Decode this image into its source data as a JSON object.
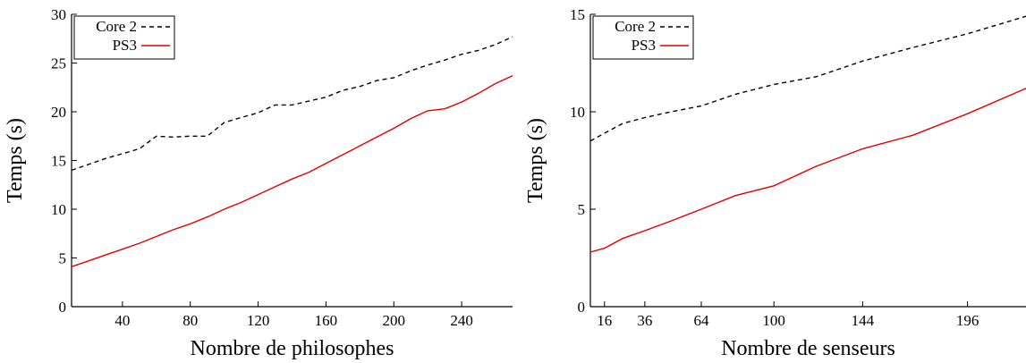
{
  "chart_data": [
    {
      "type": "line",
      "xlabel": "Nombre de philosophes",
      "ylabel": "Temps (s)",
      "xlim": [
        10,
        270
      ],
      "ylim": [
        0,
        30
      ],
      "xticks": [
        40,
        80,
        120,
        160,
        200,
        240
      ],
      "yticks": [
        0,
        5,
        10,
        15,
        20,
        25,
        30
      ],
      "legend_position": "top-left",
      "series": [
        {
          "name": "Core 2",
          "style": "dashed",
          "color": "#000000",
          "x": [
            10,
            20,
            30,
            40,
            50,
            60,
            70,
            80,
            90,
            100,
            110,
            120,
            130,
            140,
            150,
            160,
            170,
            180,
            190,
            200,
            210,
            220,
            230,
            240,
            250,
            260,
            270
          ],
          "y": [
            14.0,
            14.6,
            15.2,
            15.7,
            16.2,
            17.5,
            17.4,
            17.5,
            17.5,
            18.9,
            19.4,
            19.9,
            20.7,
            20.7,
            21.1,
            21.5,
            22.2,
            22.6,
            23.2,
            23.5,
            24.2,
            24.8,
            25.3,
            25.9,
            26.3,
            26.9,
            27.7
          ]
        },
        {
          "name": "PS3",
          "style": "solid",
          "color": "#e00000",
          "x": [
            10,
            20,
            30,
            40,
            50,
            60,
            70,
            80,
            90,
            100,
            110,
            120,
            130,
            140,
            150,
            160,
            170,
            180,
            190,
            200,
            210,
            220,
            230,
            240,
            250,
            260,
            270
          ],
          "y": [
            4.1,
            4.7,
            5.3,
            5.9,
            6.5,
            7.2,
            7.9,
            8.5,
            9.2,
            10.0,
            10.7,
            11.5,
            12.3,
            13.1,
            13.8,
            14.7,
            15.6,
            16.5,
            17.4,
            18.3,
            19.3,
            20.1,
            20.3,
            21.0,
            21.9,
            22.9,
            23.7
          ]
        }
      ]
    },
    {
      "type": "line",
      "xlabel": "Nombre de senseurs",
      "ylabel": "Temps (s)",
      "xlim": [
        9,
        225
      ],
      "ylim": [
        0,
        15
      ],
      "xticks": [
        16,
        36,
        64,
        100,
        144,
        196
      ],
      "yticks": [
        0,
        5,
        10,
        15
      ],
      "legend_position": "top-left",
      "series": [
        {
          "name": "Core 2",
          "style": "dashed",
          "color": "#000000",
          "x": [
            9,
            16,
            25,
            36,
            49,
            64,
            81,
            100,
            121,
            144,
            169,
            196,
            225
          ],
          "y": [
            8.5,
            8.9,
            9.4,
            9.7,
            10.0,
            10.3,
            10.9,
            11.4,
            11.8,
            12.6,
            13.3,
            14.0,
            14.9
          ]
        },
        {
          "name": "PS3",
          "style": "solid",
          "color": "#e00000",
          "x": [
            9,
            16,
            25,
            36,
            49,
            64,
            81,
            100,
            121,
            144,
            169,
            196,
            225
          ],
          "y": [
            2.8,
            3.0,
            3.5,
            3.9,
            4.4,
            5.0,
            5.7,
            6.2,
            7.2,
            8.1,
            8.8,
            9.9,
            11.2
          ]
        }
      ]
    }
  ]
}
